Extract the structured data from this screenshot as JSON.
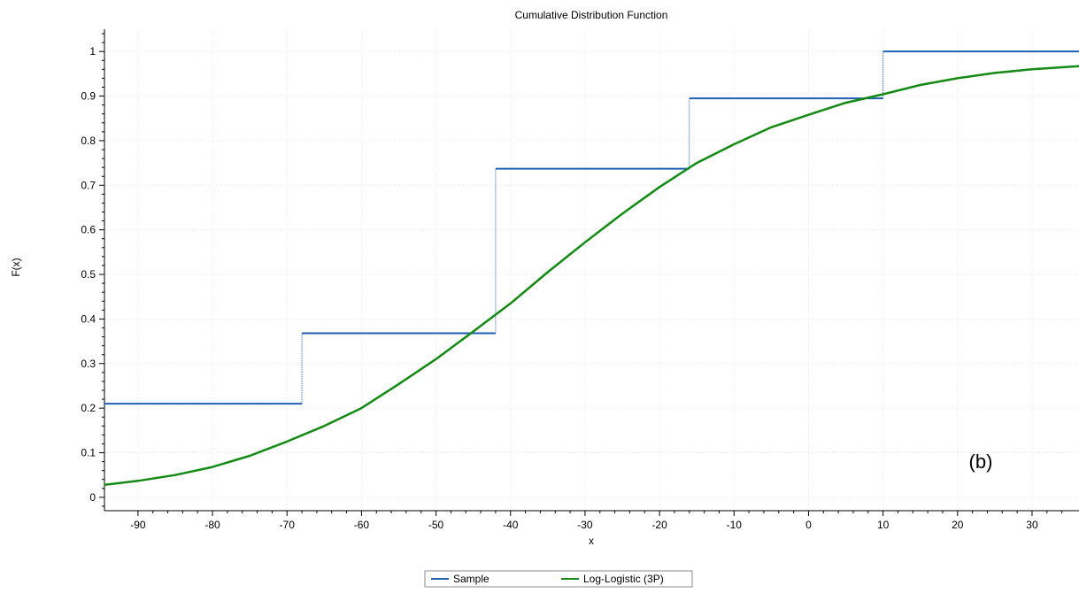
{
  "chart_data": {
    "type": "line",
    "title": "Cumulative Distribution Function",
    "xlabel": "x",
    "ylabel": "F(x)",
    "xlim": [
      -94.5,
      36.3
    ],
    "ylim": [
      -0.03,
      1.05
    ],
    "x_ticks": [
      -90,
      -80,
      -70,
      -60,
      -50,
      -40,
      -30,
      -20,
      -10,
      0,
      10,
      20,
      30
    ],
    "y_ticks": [
      0,
      0.1,
      0.2,
      0.3,
      0.4,
      0.5,
      0.6,
      0.7,
      0.8,
      0.9,
      1
    ],
    "grid": true,
    "legend_position": "bottom-center",
    "annotation": "(b)",
    "series": [
      {
        "name": "Sample",
        "kind": "step",
        "color": "#1f5fb4",
        "x": [
          -94.5,
          -68,
          -42,
          -16,
          10,
          36.3
        ],
        "y": [
          0.21,
          0.368,
          0.737,
          0.895,
          1.0,
          1.0
        ]
      },
      {
        "name": "Log-Logistic (3P)",
        "kind": "curve",
        "color": "#138a13",
        "x": [
          -94.5,
          -90,
          -85,
          -80,
          -75,
          -70,
          -65,
          -60,
          -55,
          -50,
          -45,
          -40,
          -35,
          -30,
          -25,
          -20,
          -15,
          -10,
          -5,
          0,
          5,
          10,
          15,
          20,
          25,
          30,
          36.3
        ],
        "y": [
          0.028,
          0.037,
          0.05,
          0.068,
          0.093,
          0.125,
          0.16,
          0.2,
          0.254,
          0.31,
          0.372,
          0.435,
          0.505,
          0.572,
          0.636,
          0.696,
          0.75,
          0.792,
          0.83,
          0.858,
          0.885,
          0.904,
          0.925,
          0.94,
          0.952,
          0.96,
          0.967
        ]
      }
    ]
  }
}
